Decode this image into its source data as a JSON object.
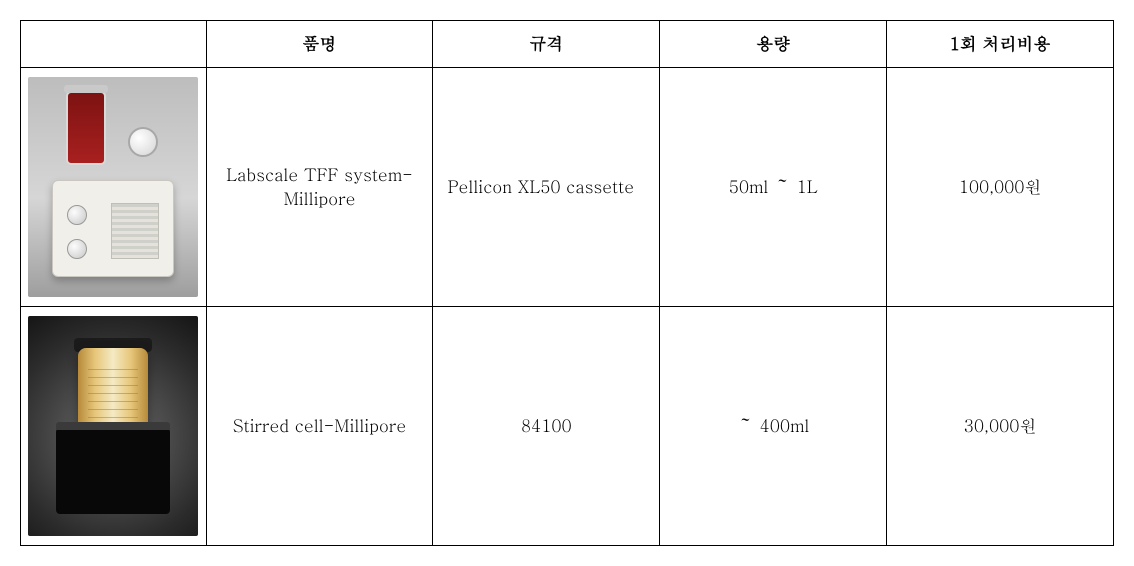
{
  "table": {
    "headers": {
      "image": "",
      "name": "품명",
      "spec": "규격",
      "capacity": "용량",
      "cost": "1회 처리비용"
    },
    "rows": [
      {
        "image_alt": "Labscale TFF system product photo",
        "name": "Labscale TFF system-Millipore",
        "spec": "Pellicon XL50 cassette",
        "capacity": "50ml ～ 1L",
        "cost": "100,000원"
      },
      {
        "image_alt": "Stirred cell product photo",
        "name": "Stirred cell-Millipore",
        "spec": "84100",
        "capacity": "～ 400ml",
        "cost": "30,000원"
      }
    ]
  }
}
